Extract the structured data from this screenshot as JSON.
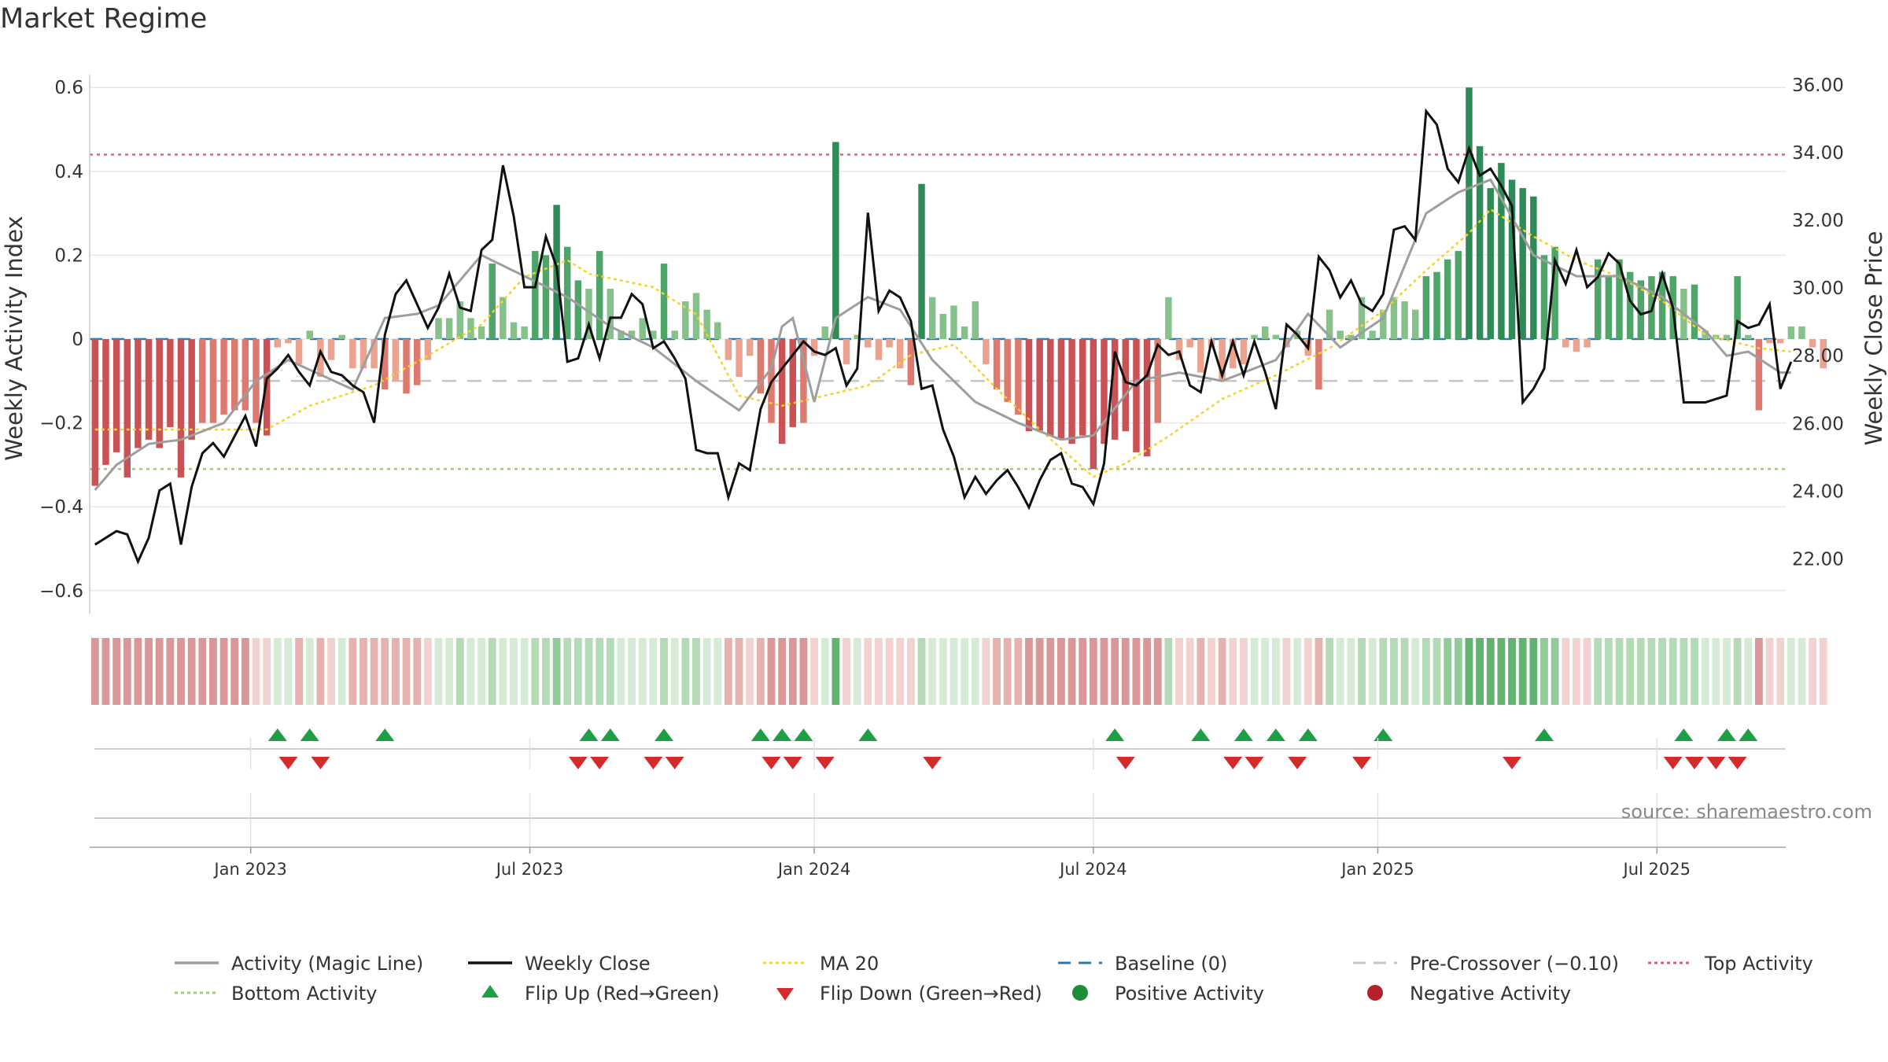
{
  "title": "Market Regime",
  "chart_data": {
    "type": "bar+line",
    "title": "Market Regime",
    "y_left_label": "Weekly Activity Index",
    "y_right_label": "Weekly Close Price",
    "y_left_range": [
      -0.65,
      0.65
    ],
    "y_right_range": [
      21.2,
      36.6
    ],
    "y_left_ticks": [
      "0.6",
      "0.4",
      "0.2",
      "0",
      "−0.2",
      "−0.4",
      "−0.6"
    ],
    "y_right_ticks": [
      "36.00",
      "34.00",
      "32.00",
      "30.00",
      "28.00",
      "26.00",
      "24.00",
      "22.00"
    ],
    "x_tick_labels": [
      "Jan 2023",
      "Jul 2023",
      "Jan 2024",
      "Jul 2024",
      "Jan 2025",
      "Jul 2025"
    ],
    "x_tick_weeks": [
      14.5,
      40.5,
      67,
      93,
      119.5,
      145.5
    ],
    "num_weeks": 158,
    "reference_lines": {
      "baseline": 0,
      "pre_crossover": -0.1,
      "top_activity": 0.44,
      "bottom_activity": -0.31
    },
    "activity_knots": [
      [
        0,
        -0.36
      ],
      [
        2,
        -0.3
      ],
      [
        5,
        -0.25
      ],
      [
        8,
        -0.24
      ],
      [
        12,
        -0.2
      ],
      [
        15,
        -0.1
      ],
      [
        18,
        -0.05
      ],
      [
        24,
        -0.12
      ],
      [
        27,
        0.05
      ],
      [
        30,
        0.06
      ],
      [
        32,
        0.08
      ],
      [
        36,
        0.2
      ],
      [
        40,
        0.15
      ],
      [
        44,
        0.1
      ],
      [
        48,
        0.03
      ],
      [
        52,
        -0.02
      ],
      [
        56,
        -0.1
      ],
      [
        60,
        -0.17
      ],
      [
        63,
        -0.07
      ],
      [
        64,
        0.03
      ],
      [
        65,
        0.05
      ],
      [
        67,
        -0.15
      ],
      [
        69,
        0.05
      ],
      [
        72,
        0.1
      ],
      [
        75,
        0.07
      ],
      [
        78,
        -0.05
      ],
      [
        82,
        -0.15
      ],
      [
        86,
        -0.2
      ],
      [
        90,
        -0.24
      ],
      [
        93,
        -0.23
      ],
      [
        97,
        -0.1
      ],
      [
        101,
        -0.08
      ],
      [
        105,
        -0.1
      ],
      [
        110,
        -0.05
      ],
      [
        113,
        0.06
      ],
      [
        116,
        -0.02
      ],
      [
        120,
        0.05
      ],
      [
        124,
        0.3
      ],
      [
        127,
        0.35
      ],
      [
        130,
        0.38
      ],
      [
        134,
        0.2
      ],
      [
        138,
        0.15
      ],
      [
        142,
        0.15
      ],
      [
        146,
        0.1
      ],
      [
        150,
        0.02
      ],
      [
        152,
        -0.04
      ],
      [
        154,
        -0.03
      ],
      [
        157,
        -0.08
      ]
    ],
    "weekly_close_knots": [
      [
        0,
        22.4
      ],
      [
        2,
        22.8
      ],
      [
        3,
        22.7
      ],
      [
        4,
        21.9
      ],
      [
        5,
        22.6
      ],
      [
        6,
        24.0
      ],
      [
        7,
        24.2
      ],
      [
        8,
        22.4
      ],
      [
        9,
        24.1
      ],
      [
        10,
        25.1
      ],
      [
        11,
        25.4
      ],
      [
        12,
        25.0
      ],
      [
        13,
        25.6
      ],
      [
        14,
        26.2
      ],
      [
        15,
        25.3
      ],
      [
        16,
        27.3
      ],
      [
        17,
        27.6
      ],
      [
        18,
        28.0
      ],
      [
        19,
        27.5
      ],
      [
        20,
        27.1
      ],
      [
        21,
        28.1
      ],
      [
        22,
        27.5
      ],
      [
        23,
        27.4
      ],
      [
        24,
        27.1
      ],
      [
        25,
        26.9
      ],
      [
        26,
        26.0
      ],
      [
        27,
        28.6
      ],
      [
        28,
        29.8
      ],
      [
        29,
        30.2
      ],
      [
        30,
        29.5
      ],
      [
        31,
        28.8
      ],
      [
        32,
        29.4
      ],
      [
        33,
        30.4
      ],
      [
        34,
        29.4
      ],
      [
        35,
        29.3
      ],
      [
        36,
        31.1
      ],
      [
        37,
        31.4
      ],
      [
        38,
        33.6
      ],
      [
        39,
        32.1
      ],
      [
        40,
        30.0
      ],
      [
        41,
        30.0
      ],
      [
        42,
        31.5
      ],
      [
        43,
        30.6
      ],
      [
        44,
        27.8
      ],
      [
        45,
        27.9
      ],
      [
        46,
        28.9
      ],
      [
        47,
        27.9
      ],
      [
        48,
        29.1
      ],
      [
        49,
        29.1
      ],
      [
        50,
        29.8
      ],
      [
        51,
        29.5
      ],
      [
        52,
        28.2
      ],
      [
        53,
        28.4
      ],
      [
        54,
        27.9
      ],
      [
        55,
        27.3
      ],
      [
        56,
        25.2
      ],
      [
        57,
        25.1
      ],
      [
        58,
        25.1
      ],
      [
        59,
        23.8
      ],
      [
        60,
        24.8
      ],
      [
        61,
        24.6
      ],
      [
        62,
        26.4
      ],
      [
        63,
        27.2
      ],
      [
        64,
        27.6
      ],
      [
        65,
        28.0
      ],
      [
        66,
        28.4
      ],
      [
        67,
        28.1
      ],
      [
        68,
        28.0
      ],
      [
        69,
        28.2
      ],
      [
        70,
        27.1
      ],
      [
        71,
        27.6
      ],
      [
        72,
        32.2
      ],
      [
        73,
        29.3
      ],
      [
        74,
        29.9
      ],
      [
        75,
        29.7
      ],
      [
        76,
        29.0
      ],
      [
        77,
        27.0
      ],
      [
        78,
        27.1
      ],
      [
        79,
        25.8
      ],
      [
        80,
        25.0
      ],
      [
        81,
        23.8
      ],
      [
        82,
        24.4
      ],
      [
        83,
        23.9
      ],
      [
        84,
        24.3
      ],
      [
        85,
        24.6
      ],
      [
        86,
        24.1
      ],
      [
        87,
        23.5
      ],
      [
        88,
        24.3
      ],
      [
        89,
        24.9
      ],
      [
        90,
        25.1
      ],
      [
        91,
        24.2
      ],
      [
        92,
        24.1
      ],
      [
        93,
        23.6
      ],
      [
        94,
        24.8
      ],
      [
        95,
        28.1
      ],
      [
        96,
        27.2
      ],
      [
        97,
        27.1
      ],
      [
        98,
        27.4
      ],
      [
        99,
        28.3
      ],
      [
        100,
        28.0
      ],
      [
        101,
        28.1
      ],
      [
        102,
        27.1
      ],
      [
        103,
        26.9
      ],
      [
        104,
        28.4
      ],
      [
        105,
        27.4
      ],
      [
        106,
        28.4
      ],
      [
        107,
        27.4
      ],
      [
        108,
        28.4
      ],
      [
        109,
        27.5
      ],
      [
        110,
        26.4
      ],
      [
        111,
        28.9
      ],
      [
        112,
        28.6
      ],
      [
        113,
        28.2
      ],
      [
        114,
        30.9
      ],
      [
        115,
        30.5
      ],
      [
        116,
        29.7
      ],
      [
        117,
        30.2
      ],
      [
        118,
        29.5
      ],
      [
        119,
        29.3
      ],
      [
        120,
        29.8
      ],
      [
        121,
        31.7
      ],
      [
        122,
        31.8
      ],
      [
        123,
        31.4
      ],
      [
        124,
        35.2
      ],
      [
        125,
        34.8
      ],
      [
        126,
        33.5
      ],
      [
        127,
        33.1
      ],
      [
        128,
        34.1
      ],
      [
        129,
        33.3
      ],
      [
        130,
        33.5
      ],
      [
        131,
        33.0
      ],
      [
        132,
        32.4
      ],
      [
        133,
        26.6
      ],
      [
        134,
        27.0
      ],
      [
        135,
        27.6
      ],
      [
        136,
        30.8
      ],
      [
        137,
        30.1
      ],
      [
        138,
        31.1
      ],
      [
        139,
        30.0
      ],
      [
        140,
        30.3
      ],
      [
        141,
        31.0
      ],
      [
        142,
        30.7
      ],
      [
        143,
        29.6
      ],
      [
        144,
        29.2
      ],
      [
        145,
        29.3
      ],
      [
        146,
        30.4
      ],
      [
        147,
        29.4
      ],
      [
        148,
        26.6
      ],
      [
        149,
        26.6
      ],
      [
        150,
        26.6
      ],
      [
        151,
        26.7
      ],
      [
        152,
        26.8
      ],
      [
        153,
        29.0
      ],
      [
        154,
        28.8
      ],
      [
        155,
        28.9
      ],
      [
        156,
        29.5
      ],
      [
        157,
        27.0
      ],
      [
        158,
        27.8
      ]
    ],
    "ma20_knots": [
      [
        0,
        25.8
      ],
      [
        10,
        25.8
      ],
      [
        16,
        25.8
      ],
      [
        20,
        26.5
      ],
      [
        26,
        27.1
      ],
      [
        30,
        27.8
      ],
      [
        36,
        28.9
      ],
      [
        40,
        30.3
      ],
      [
        44,
        30.8
      ],
      [
        46,
        30.4
      ],
      [
        52,
        30.0
      ],
      [
        56,
        29.2
      ],
      [
        60,
        26.8
      ],
      [
        64,
        26.5
      ],
      [
        68,
        26.8
      ],
      [
        72,
        27.1
      ],
      [
        76,
        28.0
      ],
      [
        80,
        28.3
      ],
      [
        84,
        27.0
      ],
      [
        88,
        25.8
      ],
      [
        93,
        24.4
      ],
      [
        96,
        24.8
      ],
      [
        100,
        25.6
      ],
      [
        105,
        26.7
      ],
      [
        110,
        27.4
      ],
      [
        115,
        28.2
      ],
      [
        120,
        29.3
      ],
      [
        124,
        30.5
      ],
      [
        128,
        31.6
      ],
      [
        130,
        32.3
      ],
      [
        134,
        31.5
      ],
      [
        138,
        30.8
      ],
      [
        142,
        30.3
      ],
      [
        146,
        29.6
      ],
      [
        150,
        28.6
      ],
      [
        155,
        28.2
      ],
      [
        158,
        28.1
      ]
    ],
    "activity_bars": [
      -0.35,
      -0.3,
      -0.27,
      -0.33,
      -0.26,
      -0.24,
      -0.26,
      -0.21,
      -0.33,
      -0.24,
      -0.2,
      -0.2,
      -0.18,
      -0.17,
      -0.17,
      -0.2,
      -0.23,
      -0.02,
      -0.01,
      -0.06,
      0.02,
      -0.09,
      -0.05,
      0.01,
      -0.07,
      -0.07,
      -0.07,
      -0.12,
      -0.1,
      -0.13,
      -0.11,
      -0.05,
      0.05,
      0.05,
      0.09,
      0.05,
      0.03,
      0.18,
      0.1,
      0.04,
      0.03,
      0.21,
      0.2,
      0.32,
      0.22,
      0.14,
      0.12,
      0.21,
      0.12,
      0.02,
      0.02,
      0.05,
      0.02,
      0.18,
      0.02,
      0.09,
      0.11,
      0.07,
      0.04,
      -0.05,
      -0.09,
      -0.04,
      -0.13,
      -0.2,
      -0.25,
      -0.21,
      -0.2,
      -0.04,
      0.03,
      0.47,
      -0.06,
      0.01,
      -0.02,
      -0.05,
      -0.02,
      -0.07,
      -0.11,
      0.37,
      0.1,
      0.06,
      0.08,
      0.03,
      0.09,
      -0.06,
      -0.12,
      -0.15,
      -0.18,
      -0.22,
      -0.22,
      -0.23,
      -0.24,
      -0.25,
      -0.23,
      -0.31,
      -0.25,
      -0.24,
      -0.22,
      -0.27,
      -0.28,
      -0.2,
      0.1,
      -0.05,
      -0.02,
      -0.08,
      -0.02,
      -0.1,
      -0.07,
      -0.06,
      0.01,
      0.03,
      0.01,
      -0.02,
      0.02,
      -0.04,
      -0.12,
      0.07,
      0.02,
      0.01,
      0.1,
      0.02,
      0.07,
      0.1,
      0.09,
      0.07,
      0.15,
      0.16,
      0.19,
      0.21,
      0.6,
      0.46,
      0.36,
      0.42,
      0.38,
      0.36,
      0.34,
      0.2,
      0.22,
      -0.02,
      -0.03,
      -0.02,
      0.19,
      0.15,
      0.19,
      0.16,
      0.14,
      0.15,
      0.16,
      0.15,
      0.12,
      0.13,
      0.02,
      0.01,
      0.01,
      0.15,
      0.01,
      -0.17,
      -0.01,
      -0.01,
      0.03,
      0.03,
      -0.02,
      -0.07
    ],
    "regime_strip_levels": [
      -3,
      -3,
      -3,
      -3,
      -3,
      -3,
      -3,
      -3,
      -3,
      -3,
      -3,
      -3,
      -3,
      -3,
      -3,
      -1,
      -1,
      1,
      1,
      -2,
      1,
      -2,
      -1,
      1,
      -2,
      -2,
      -2,
      -2,
      -2,
      -2,
      -2,
      -1,
      1,
      1,
      2,
      1,
      1,
      2,
      1,
      1,
      1,
      2,
      2,
      3,
      2,
      2,
      2,
      2,
      2,
      1,
      1,
      1,
      1,
      2,
      1,
      2,
      2,
      1,
      1,
      -2,
      -2,
      -1,
      -2,
      -3,
      -3,
      -3,
      -3,
      -1,
      1,
      4,
      -1,
      1,
      -1,
      -1,
      -1,
      -1,
      -1,
      2,
      1,
      1,
      1,
      1,
      1,
      -1,
      -2,
      -2,
      -2,
      -3,
      -3,
      -3,
      -3,
      -3,
      -3,
      -3,
      -3,
      -3,
      -3,
      -3,
      -3,
      -3,
      2,
      -1,
      -1,
      -2,
      -1,
      -2,
      -1,
      -1,
      1,
      1,
      1,
      -1,
      1,
      -1,
      -2,
      2,
      1,
      1,
      2,
      1,
      2,
      2,
      2,
      1,
      2,
      2,
      3,
      3,
      4,
      4,
      4,
      4,
      4,
      4,
      4,
      3,
      3,
      -1,
      -1,
      -1,
      2,
      2,
      2,
      2,
      2,
      2,
      2,
      2,
      2,
      2,
      1,
      1,
      1,
      2,
      1,
      -3,
      -1,
      -1,
      1,
      1,
      -1,
      -1
    ],
    "flip_up_weeks": [
      17,
      20,
      27,
      46,
      48,
      53,
      62,
      64,
      66,
      72,
      95,
      103,
      107,
      110,
      113,
      120,
      135,
      148,
      152,
      154
    ],
    "flip_down_weeks": [
      18,
      21,
      45,
      47,
      52,
      54,
      63,
      65,
      68,
      78,
      96,
      106,
      108,
      112,
      118,
      132,
      147,
      149,
      151,
      153
    ],
    "source_note": "source: sharemaestro.com",
    "legend": [
      {
        "label": "Activity (Magic Line)",
        "marker": "line",
        "color": "#9e9e9e"
      },
      {
        "label": "Weekly Close",
        "marker": "line",
        "color": "#111111"
      },
      {
        "label": "MA 20",
        "marker": "dotted",
        "color": "#f5d328"
      },
      {
        "label": "Baseline (0)",
        "marker": "dashed",
        "color": "#2e7ab0"
      },
      {
        "label": "Pre-Crossover (−0.10)",
        "marker": "dashed",
        "color": "#c6c6c6"
      },
      {
        "label": "Top Activity",
        "marker": "dotted",
        "color": "#e0607a"
      },
      {
        "label": "Bottom Activity",
        "marker": "dotted",
        "color": "#9ccf6b"
      },
      {
        "label": "Flip Up (Red→Green)",
        "marker": "triangle-up",
        "color": "#1e9e45"
      },
      {
        "label": "Flip Down (Green→Red)",
        "marker": "triangle-down",
        "color": "#d42a2a"
      },
      {
        "label": "Positive Activity",
        "marker": "circle",
        "color": "#1e8c3a"
      },
      {
        "label": "Negative Activity",
        "marker": "circle",
        "color": "#b5212a"
      }
    ]
  }
}
